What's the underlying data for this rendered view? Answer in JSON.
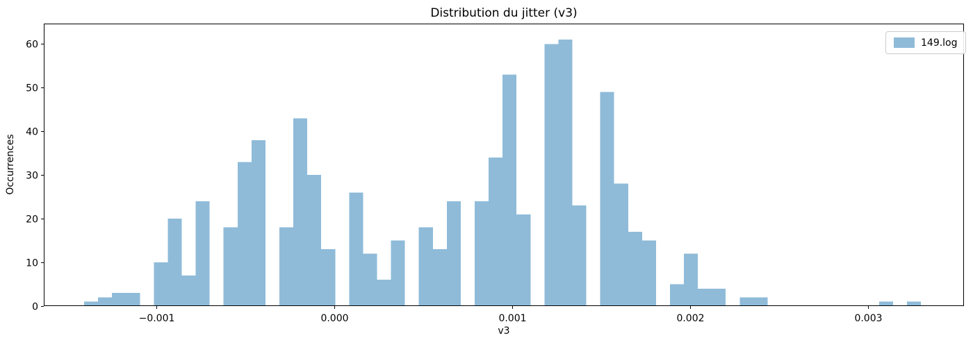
{
  "chart_data": {
    "type": "bar",
    "subtype": "histogram",
    "title": "Distribution du jitter (v3)",
    "xlabel": "v3",
    "ylabel": "Occurrences",
    "grid": false,
    "legend_position": "upper right",
    "bar_color": "#8FBBD9",
    "axis_color": "#000000",
    "xlim": [
      -0.0016328,
      0.0035391
    ],
    "ylim": [
      0,
      64.65
    ],
    "bin_start": -0.0014062,
    "bin_width": 7.84e-05,
    "x_ticks": [
      {
        "value": -0.001,
        "label": "−0.001"
      },
      {
        "value": 0.0,
        "label": "0.000"
      },
      {
        "value": 0.001,
        "label": "0.001"
      },
      {
        "value": 0.002,
        "label": "0.002"
      },
      {
        "value": 0.003,
        "label": "0.003"
      }
    ],
    "y_ticks": [
      {
        "value": 0,
        "label": "0"
      },
      {
        "value": 10,
        "label": "10"
      },
      {
        "value": 20,
        "label": "20"
      },
      {
        "value": 30,
        "label": "30"
      },
      {
        "value": 40,
        "label": "40"
      },
      {
        "value": 50,
        "label": "50"
      },
      {
        "value": 60,
        "label": "60"
      }
    ],
    "series": [
      {
        "name": "149.log",
        "counts": [
          1,
          2,
          3,
          3,
          0,
          10,
          20,
          7,
          24,
          0,
          18,
          33,
          38,
          0,
          18,
          43,
          30,
          13,
          0,
          26,
          12,
          6,
          15,
          0,
          18,
          13,
          24,
          0,
          24,
          34,
          53,
          21,
          0,
          60,
          61,
          23,
          0,
          49,
          28,
          17,
          15,
          0,
          5,
          12,
          4,
          4,
          0,
          2,
          2,
          0,
          0,
          0,
          0,
          0,
          0,
          0,
          0,
          1,
          0,
          1
        ]
      }
    ]
  }
}
